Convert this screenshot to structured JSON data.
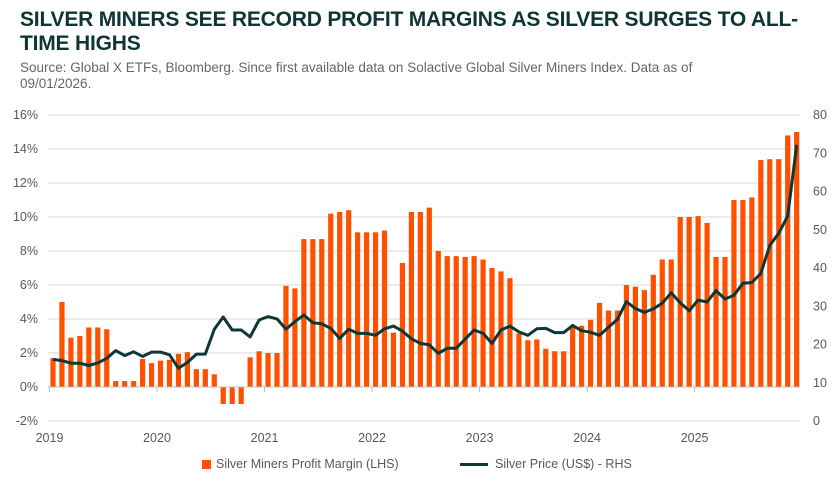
{
  "title": "SILVER MINERS SEE RECORD PROFIT MARGINS AS SILVER SURGES TO ALL-TIME HIGHS",
  "subtitle": "Source: Global X ETFs, Bloomberg. Since first available data on Solactive Global Silver Miners Index. Data as of 09/01/2026.",
  "chart_data": {
    "type": "bar+line",
    "x_start": "2019-01",
    "frequency": "monthly",
    "x_tick_labels": [
      "2019",
      "2020",
      "2021",
      "2022",
      "2023",
      "2024",
      "2025"
    ],
    "y_left": {
      "range": [
        -2,
        16
      ],
      "ticks": [
        "-2%",
        "0%",
        "2%",
        "4%",
        "6%",
        "8%",
        "10%",
        "12%",
        "14%",
        "16%"
      ]
    },
    "y_right": {
      "range": [
        0,
        80
      ],
      "ticks": [
        "0",
        "10",
        "20",
        "30",
        "40",
        "50",
        "60",
        "70",
        "80"
      ]
    },
    "grid": true,
    "legend_placement": "bottom",
    "series": [
      {
        "name": "Silver Miners Profit Margin (LHS)",
        "type": "bar",
        "axis": "left",
        "color": "#FF5000",
        "values": [
          1.7,
          5.0,
          2.9,
          3.0,
          3.5,
          3.5,
          3.4,
          0.35,
          0.35,
          0.35,
          1.65,
          1.4,
          1.55,
          1.6,
          1.95,
          2.05,
          1.05,
          1.05,
          0.75,
          -1.0,
          -1.0,
          -1.0,
          1.75,
          2.1,
          2.0,
          2.0,
          5.95,
          5.8,
          8.7,
          8.7,
          8.7,
          10.2,
          10.3,
          10.4,
          9.1,
          9.1,
          9.1,
          9.2,
          3.2,
          7.3,
          10.3,
          10.3,
          10.55,
          8.0,
          7.7,
          7.7,
          7.65,
          7.7,
          7.5,
          7.0,
          6.8,
          6.4,
          3.15,
          2.75,
          2.8,
          2.25,
          2.1,
          2.1,
          3.5,
          3.6,
          3.95,
          4.95,
          4.5,
          4.5,
          6.0,
          5.9,
          5.7,
          6.6,
          7.5,
          7.5,
          10.0,
          10.0,
          10.05,
          9.65,
          7.65,
          7.65,
          11.0,
          11.0,
          11.15,
          13.35,
          13.4,
          13.4,
          14.8,
          15.0
        ]
      },
      {
        "name": "Silver Price (US$) - RHS",
        "type": "line",
        "axis": "right",
        "color": "#0E3838",
        "values": [
          16.1,
          15.8,
          15.1,
          15.1,
          14.5,
          15.2,
          16.4,
          18.4,
          17.1,
          18.1,
          16.9,
          18.0,
          18.0,
          17.3,
          13.8,
          15.3,
          17.5,
          17.5,
          24.0,
          27.2,
          23.8,
          23.8,
          22.0,
          26.4,
          27.3,
          26.7,
          24.0,
          26.0,
          27.7,
          25.7,
          25.4,
          24.2,
          21.6,
          24.0,
          22.9,
          22.9,
          22.4,
          24.1,
          24.8,
          23.5,
          21.5,
          20.3,
          19.9,
          17.7,
          19.0,
          19.0,
          21.4,
          23.8,
          22.9,
          20.3,
          23.8,
          24.8,
          23.3,
          22.4,
          24.1,
          24.2,
          23.1,
          23.1,
          25.0,
          23.6,
          23.2,
          22.4,
          24.5,
          26.6,
          31.2,
          29.4,
          28.4,
          29.3,
          30.8,
          33.5,
          30.9,
          28.8,
          31.6,
          31.1,
          34.1,
          31.9,
          32.9,
          36.0,
          36.2,
          38.6,
          45.9,
          49.1,
          53.6,
          72.2
        ]
      }
    ]
  }
}
